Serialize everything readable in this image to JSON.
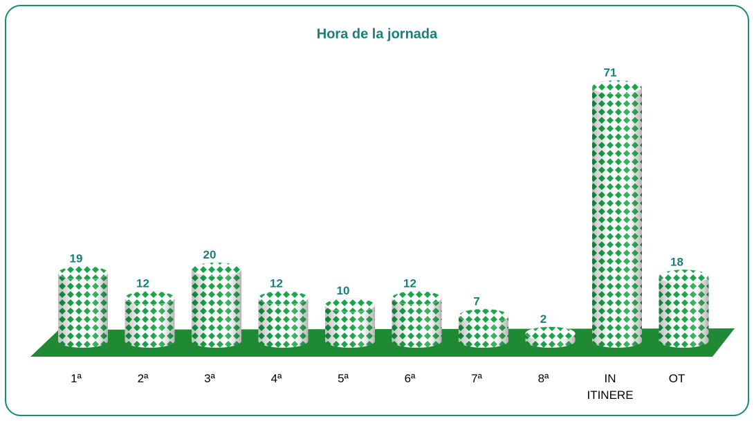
{
  "chart_data": {
    "type": "cylinder",
    "title": "Hora de la jornada",
    "categories": [
      "1ª",
      "2ª",
      "3ª",
      "4ª",
      "5ª",
      "6ª",
      "7ª",
      "8ª",
      "IN ITINERE",
      "OT"
    ],
    "values": [
      19,
      12,
      20,
      12,
      10,
      12,
      7,
      2,
      71,
      18
    ],
    "color": "#1aa64a",
    "floor_color": "#1e8a34",
    "label_color": "#1a7f7a"
  }
}
